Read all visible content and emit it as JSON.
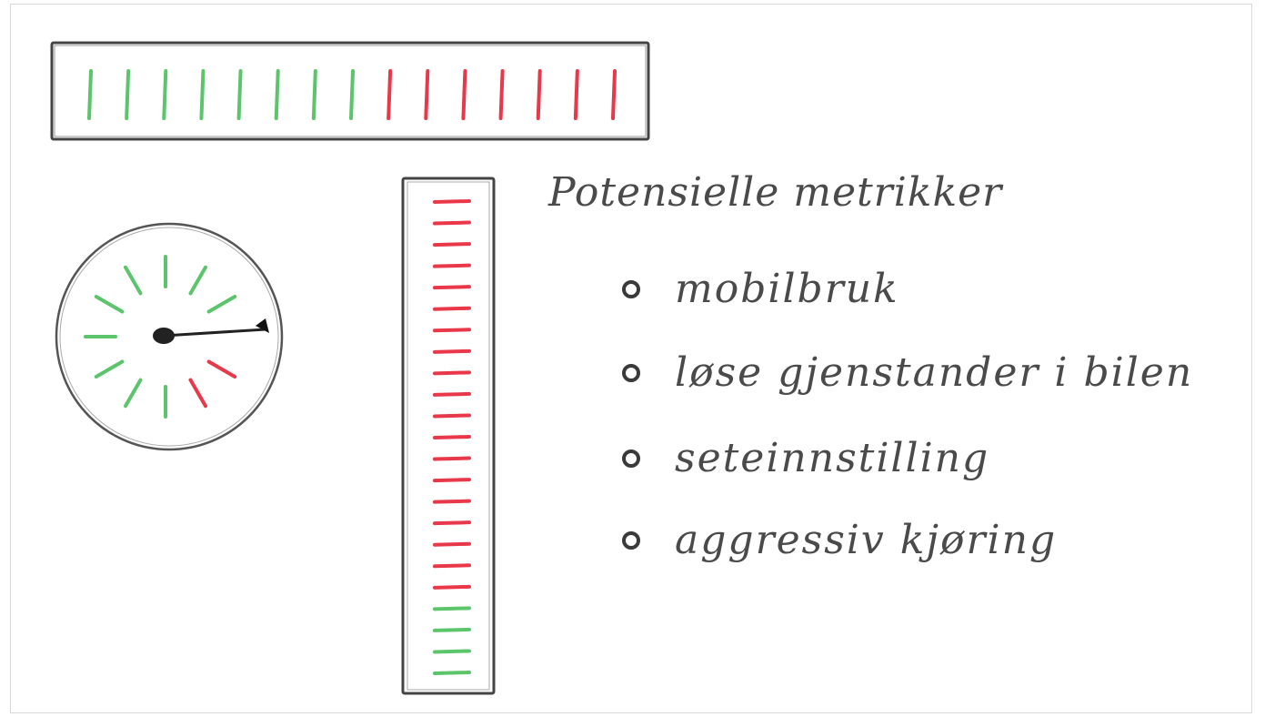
{
  "notes": {
    "title": "Potensielle metrikker",
    "items": [
      {
        "label": "mobilbruk"
      },
      {
        "label": "løse gjenstander i bilen"
      },
      {
        "label": "seteinnstilling"
      },
      {
        "label": "aggressiv kjøring"
      }
    ]
  },
  "colors": {
    "good": "#5cc46a",
    "bad": "#e8384a",
    "pencil": "#444444"
  },
  "horizontal_bar": {
    "tick_colors": [
      "good",
      "good",
      "good",
      "good",
      "good",
      "good",
      "good",
      "good",
      "bad",
      "bad",
      "bad",
      "bad",
      "bad",
      "bad",
      "bad"
    ]
  },
  "vertical_bar": {
    "tick_colors": [
      "bad",
      "bad",
      "bad",
      "bad",
      "bad",
      "bad",
      "bad",
      "bad",
      "bad",
      "bad",
      "bad",
      "bad",
      "bad",
      "bad",
      "bad",
      "bad",
      "bad",
      "bad",
      "bad",
      "good",
      "good",
      "good",
      "good"
    ]
  },
  "gauge": {
    "tick_colors": [
      "bad",
      "bad",
      "good",
      "good",
      "good",
      "good",
      "good",
      "good",
      "good",
      "good",
      "good"
    ],
    "needle_icon": "arrow-icon"
  }
}
